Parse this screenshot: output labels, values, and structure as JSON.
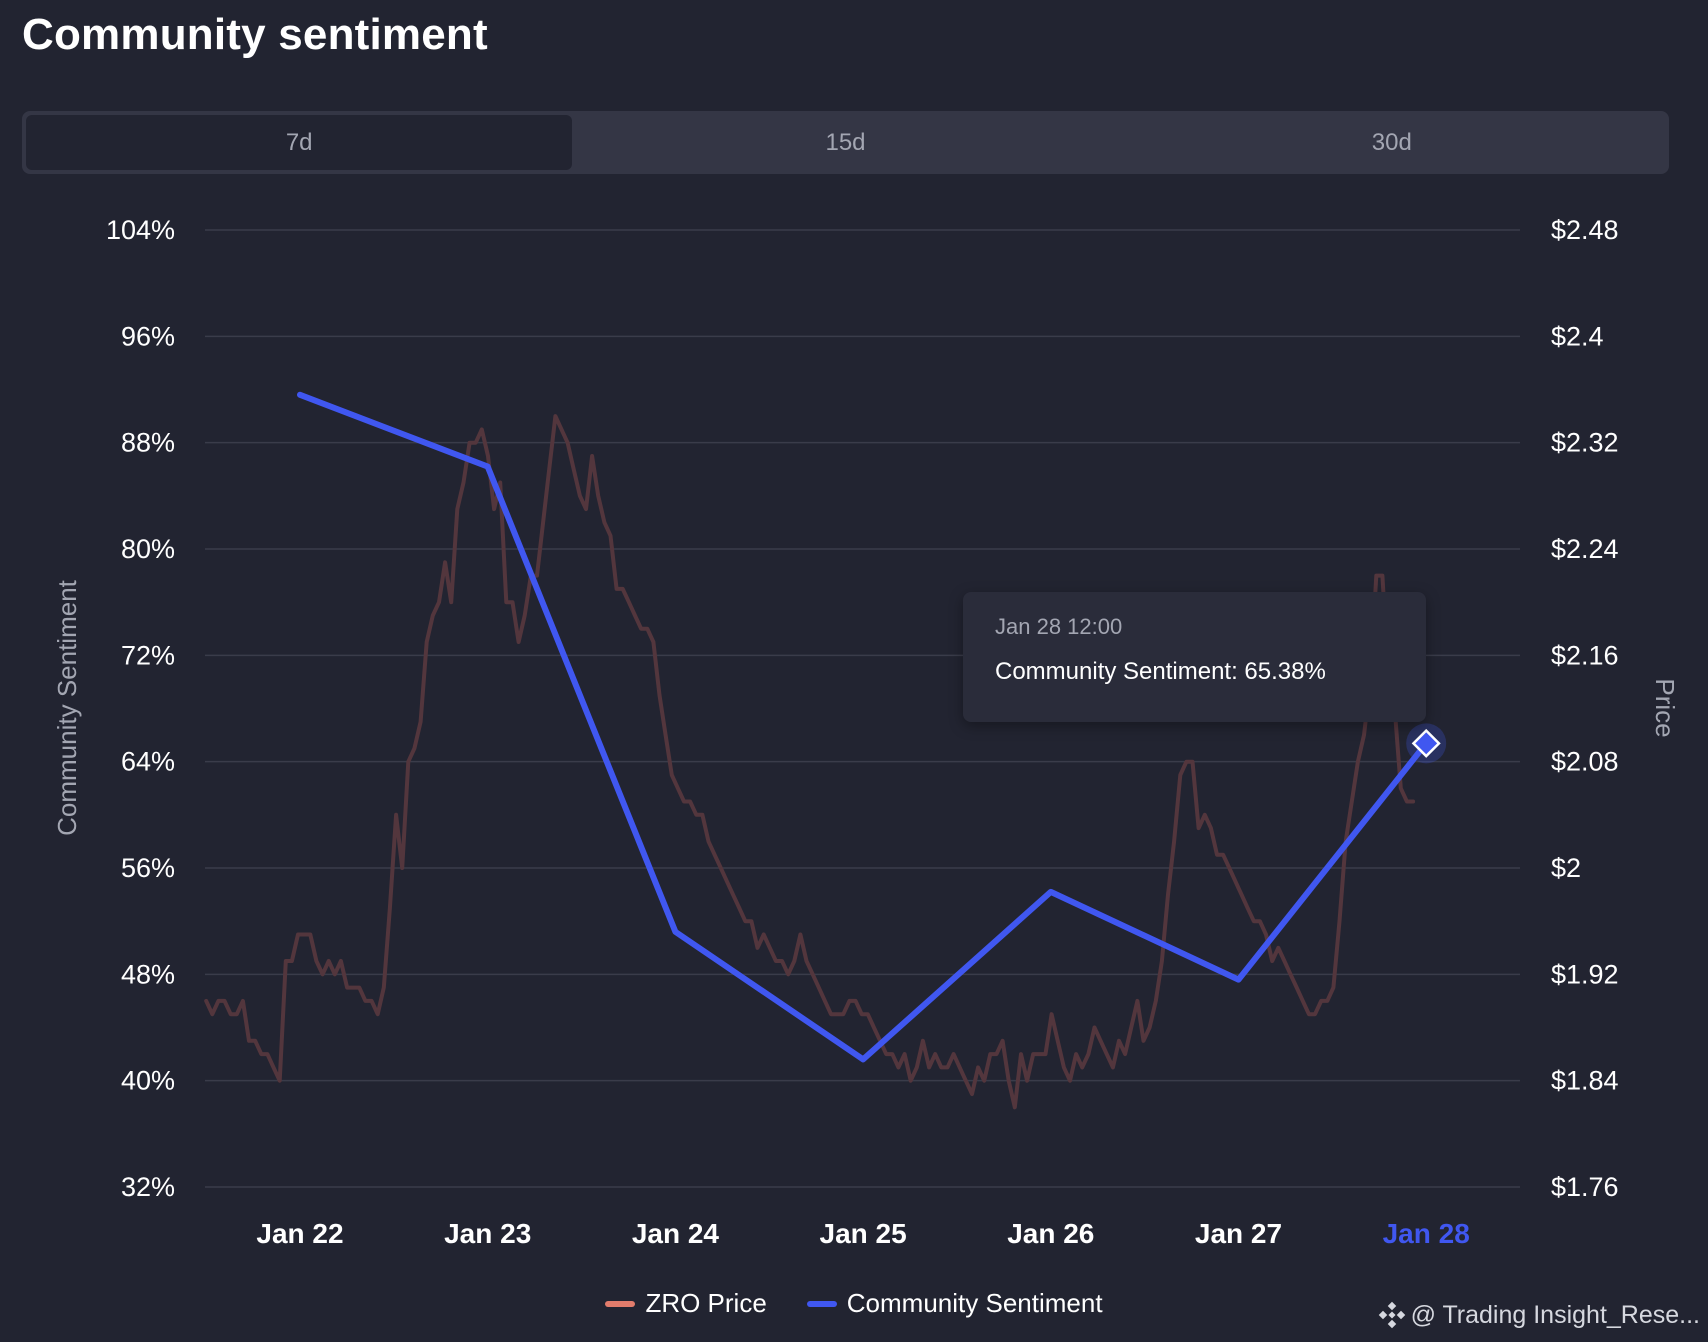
{
  "title": "Community sentiment",
  "tabs": [
    {
      "label": "7d",
      "active": true
    },
    {
      "label": "15d",
      "active": false
    },
    {
      "label": "30d",
      "active": false
    }
  ],
  "colors": {
    "background": "#222431",
    "sentiment": "#4057f0",
    "price": "#53363d",
    "price_legend": "#e27c6c",
    "grid": "#3a3c4a",
    "highlight": "#4057f0"
  },
  "tooltip": {
    "date": "Jan 28 12:00",
    "text": "Community Sentiment: 65.38%"
  },
  "legend": [
    {
      "label": "ZRO Price",
      "color": "#e27c6c"
    },
    {
      "label": "Community Sentiment",
      "color": "#4057f0"
    }
  ],
  "watermark": {
    "text": "@ Trading Insight_Rese...",
    "icon": "binance-logo-icon"
  },
  "chart_data": {
    "type": "line",
    "title": "Community sentiment",
    "x_categories": [
      "Jan 22",
      "Jan 23",
      "Jan 24",
      "Jan 25",
      "Jan 26",
      "Jan 27",
      "Jan 28"
    ],
    "highlighted_category": "Jan 28",
    "y_left": {
      "label": "Community Sentiment",
      "range": [
        32,
        104
      ],
      "ticks": [
        "104%",
        "96%",
        "88%",
        "80%",
        "72%",
        "64%",
        "56%",
        "48%",
        "40%",
        "32%"
      ]
    },
    "y_right": {
      "label": "Price",
      "range": [
        1.76,
        2.48
      ],
      "ticks": [
        "$2.48",
        "$2.4",
        "$2.32",
        "$2.24",
        "$2.16",
        "$2.08",
        "$2",
        "$1.92",
        "$1.84",
        "$1.76"
      ]
    },
    "series": [
      {
        "name": "Community Sentiment",
        "axis": "left",
        "x": [
          0,
          1,
          2,
          3,
          4,
          5,
          6
        ],
        "values": [
          91.6,
          86.2,
          51.2,
          41.6,
          54.2,
          47.6,
          65.38
        ]
      },
      {
        "name": "ZRO Price",
        "axis": "right",
        "x_start": -0.5,
        "x_end": 5.93,
        "values": [
          1.9,
          1.89,
          1.9,
          1.9,
          1.89,
          1.89,
          1.9,
          1.87,
          1.87,
          1.86,
          1.86,
          1.85,
          1.84,
          1.93,
          1.93,
          1.95,
          1.95,
          1.95,
          1.93,
          1.92,
          1.93,
          1.92,
          1.93,
          1.91,
          1.91,
          1.91,
          1.9,
          1.9,
          1.89,
          1.91,
          1.97,
          2.04,
          2.0,
          2.08,
          2.09,
          2.11,
          2.17,
          2.19,
          2.2,
          2.23,
          2.2,
          2.27,
          2.29,
          2.32,
          2.32,
          2.33,
          2.31,
          2.27,
          2.29,
          2.2,
          2.2,
          2.17,
          2.19,
          2.22,
          2.22,
          2.26,
          2.3,
          2.34,
          2.33,
          2.32,
          2.3,
          2.28,
          2.27,
          2.31,
          2.28,
          2.26,
          2.25,
          2.21,
          2.21,
          2.2,
          2.19,
          2.18,
          2.18,
          2.17,
          2.13,
          2.1,
          2.07,
          2.06,
          2.05,
          2.05,
          2.04,
          2.04,
          2.02,
          2.01,
          2.0,
          1.99,
          1.98,
          1.97,
          1.96,
          1.96,
          1.94,
          1.95,
          1.94,
          1.93,
          1.93,
          1.92,
          1.93,
          1.95,
          1.93,
          1.92,
          1.91,
          1.9,
          1.89,
          1.89,
          1.89,
          1.9,
          1.9,
          1.89,
          1.89,
          1.88,
          1.87,
          1.86,
          1.86,
          1.85,
          1.86,
          1.84,
          1.85,
          1.87,
          1.85,
          1.86,
          1.85,
          1.85,
          1.86,
          1.85,
          1.84,
          1.83,
          1.85,
          1.84,
          1.86,
          1.86,
          1.87,
          1.84,
          1.82,
          1.86,
          1.84,
          1.86,
          1.86,
          1.86,
          1.89,
          1.87,
          1.85,
          1.84,
          1.86,
          1.85,
          1.86,
          1.88,
          1.87,
          1.86,
          1.85,
          1.87,
          1.86,
          1.88,
          1.9,
          1.87,
          1.88,
          1.9,
          1.93,
          1.98,
          2.02,
          2.07,
          2.08,
          2.08,
          2.03,
          2.04,
          2.03,
          2.01,
          2.01,
          2.0,
          1.99,
          1.98,
          1.97,
          1.96,
          1.96,
          1.95,
          1.93,
          1.94,
          1.93,
          1.92,
          1.91,
          1.9,
          1.89,
          1.89,
          1.9,
          1.9,
          1.91,
          1.96,
          2.02,
          2.05,
          2.08,
          2.1,
          2.14,
          2.22,
          2.22,
          2.14,
          2.12,
          2.06,
          2.05,
          2.05
        ]
      }
    ]
  }
}
